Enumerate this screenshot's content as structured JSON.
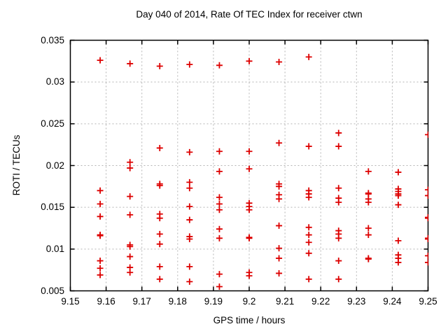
{
  "chart_data": {
    "type": "scatter",
    "title": "Day 040 of 2014, Rate Of TEC Index for receiver ctwn",
    "xlabel": "GPS time / hours",
    "ylabel": "ROTI / TECUs",
    "xlim": [
      9.15,
      9.25
    ],
    "ylim": [
      0.005,
      0.035
    ],
    "grid": true,
    "legend": false,
    "marker": "plus",
    "marker_color": "#dd0000",
    "grid_color": "#b4b4b4",
    "border_color": "#000000",
    "x_ticks": [
      {
        "value": 9.15,
        "label": "9.15"
      },
      {
        "value": 9.16,
        "label": "9.16"
      },
      {
        "value": 9.17,
        "label": "9.17"
      },
      {
        "value": 9.18,
        "label": "9.18"
      },
      {
        "value": 9.19,
        "label": "9.19"
      },
      {
        "value": 9.2,
        "label": "9.2"
      },
      {
        "value": 9.21,
        "label": "9.21"
      },
      {
        "value": 9.22,
        "label": "9.22"
      },
      {
        "value": 9.23,
        "label": "9.23"
      },
      {
        "value": 9.24,
        "label": "9.24"
      },
      {
        "value": 9.25,
        "label": "9.25"
      }
    ],
    "y_ticks": [
      {
        "value": 0.005,
        "label": "0.005"
      },
      {
        "value": 0.01,
        "label": "0.01"
      },
      {
        "value": 0.015,
        "label": "0.015"
      },
      {
        "value": 0.02,
        "label": "0.02"
      },
      {
        "value": 0.025,
        "label": "0.025"
      },
      {
        "value": 0.03,
        "label": "0.03"
      },
      {
        "value": 0.035,
        "label": "0.035"
      }
    ],
    "series": [
      {
        "name": "ROTI",
        "points": [
          [
            9.15833,
            0.0326
          ],
          [
            9.15833,
            0.017
          ],
          [
            9.15833,
            0.0154
          ],
          [
            9.15833,
            0.0139
          ],
          [
            9.15833,
            0.0117
          ],
          [
            9.15833,
            0.0116
          ],
          [
            9.15833,
            0.0086
          ],
          [
            9.15833,
            0.0077
          ],
          [
            9.15833,
            0.0069
          ],
          [
            9.16667,
            0.0322
          ],
          [
            9.16667,
            0.0204
          ],
          [
            9.16667,
            0.0197
          ],
          [
            9.16667,
            0.0163
          ],
          [
            9.16667,
            0.0141
          ],
          [
            9.16667,
            0.0105
          ],
          [
            9.16667,
            0.0103
          ],
          [
            9.16667,
            0.0091
          ],
          [
            9.16667,
            0.0078
          ],
          [
            9.16667,
            0.0072
          ],
          [
            9.175,
            0.0319
          ],
          [
            9.175,
            0.0221
          ],
          [
            9.175,
            0.0178
          ],
          [
            9.175,
            0.0176
          ],
          [
            9.175,
            0.0142
          ],
          [
            9.175,
            0.0137
          ],
          [
            9.175,
            0.0118
          ],
          [
            9.175,
            0.0106
          ],
          [
            9.175,
            0.0079
          ],
          [
            9.175,
            0.0064
          ],
          [
            9.18333,
            0.0321
          ],
          [
            9.18333,
            0.0216
          ],
          [
            9.18333,
            0.018
          ],
          [
            9.18333,
            0.0173
          ],
          [
            9.18333,
            0.0151
          ],
          [
            9.18333,
            0.0135
          ],
          [
            9.18333,
            0.0115
          ],
          [
            9.18333,
            0.0112
          ],
          [
            9.18333,
            0.0079
          ],
          [
            9.18333,
            0.0061
          ],
          [
            9.19167,
            0.032
          ],
          [
            9.19167,
            0.0217
          ],
          [
            9.19167,
            0.0193
          ],
          [
            9.19167,
            0.0162
          ],
          [
            9.19167,
            0.0154
          ],
          [
            9.19167,
            0.0147
          ],
          [
            9.19167,
            0.0124
          ],
          [
            9.19167,
            0.0113
          ],
          [
            9.19167,
            0.007
          ],
          [
            9.19167,
            0.0055
          ],
          [
            9.2,
            0.0325
          ],
          [
            9.2,
            0.0217
          ],
          [
            9.2,
            0.0196
          ],
          [
            9.2,
            0.0155
          ],
          [
            9.2,
            0.0151
          ],
          [
            9.2,
            0.0147
          ],
          [
            9.2,
            0.0114
          ],
          [
            9.2,
            0.0113
          ],
          [
            9.2,
            0.0072
          ],
          [
            9.2,
            0.0068
          ],
          [
            9.20833,
            0.0324
          ],
          [
            9.20833,
            0.0227
          ],
          [
            9.20833,
            0.0178
          ],
          [
            9.20833,
            0.0175
          ],
          [
            9.20833,
            0.0165
          ],
          [
            9.20833,
            0.016
          ],
          [
            9.20833,
            0.0128
          ],
          [
            9.20833,
            0.0101
          ],
          [
            9.20833,
            0.0089
          ],
          [
            9.20833,
            0.0071
          ],
          [
            9.21667,
            0.033
          ],
          [
            9.21667,
            0.0223
          ],
          [
            9.21667,
            0.017
          ],
          [
            9.21667,
            0.0166
          ],
          [
            9.21667,
            0.0162
          ],
          [
            9.21667,
            0.0126
          ],
          [
            9.21667,
            0.0117
          ],
          [
            9.21667,
            0.0108
          ],
          [
            9.21667,
            0.0095
          ],
          [
            9.21667,
            0.0064
          ],
          [
            9.225,
            0.0239
          ],
          [
            9.225,
            0.0223
          ],
          [
            9.225,
            0.0173
          ],
          [
            9.225,
            0.0161
          ],
          [
            9.225,
            0.0156
          ],
          [
            9.225,
            0.0122
          ],
          [
            9.225,
            0.0118
          ],
          [
            9.225,
            0.0113
          ],
          [
            9.225,
            0.0086
          ],
          [
            9.225,
            0.0064
          ],
          [
            9.23333,
            0.0193
          ],
          [
            9.23333,
            0.0167
          ],
          [
            9.23333,
            0.0166
          ],
          [
            9.23333,
            0.016
          ],
          [
            9.23333,
            0.0156
          ],
          [
            9.23333,
            0.0125
          ],
          [
            9.23333,
            0.0117
          ],
          [
            9.23333,
            0.0089
          ],
          [
            9.23333,
            0.0088
          ],
          [
            9.24167,
            0.0192
          ],
          [
            9.24167,
            0.0172
          ],
          [
            9.24167,
            0.0169
          ],
          [
            9.24167,
            0.0166
          ],
          [
            9.24167,
            0.0164
          ],
          [
            9.24167,
            0.0153
          ],
          [
            9.24167,
            0.011
          ],
          [
            9.24167,
            0.0093
          ],
          [
            9.24167,
            0.0089
          ],
          [
            9.24167,
            0.0084
          ],
          [
            9.25,
            0.0237
          ],
          [
            9.25,
            0.0171
          ],
          [
            9.25,
            0.0164
          ],
          [
            9.25,
            0.0138
          ],
          [
            9.25,
            0.0137
          ],
          [
            9.25,
            0.0113
          ],
          [
            9.25,
            0.0112
          ],
          [
            9.25,
            0.0092
          ],
          [
            9.25,
            0.0084
          ]
        ]
      }
    ]
  }
}
